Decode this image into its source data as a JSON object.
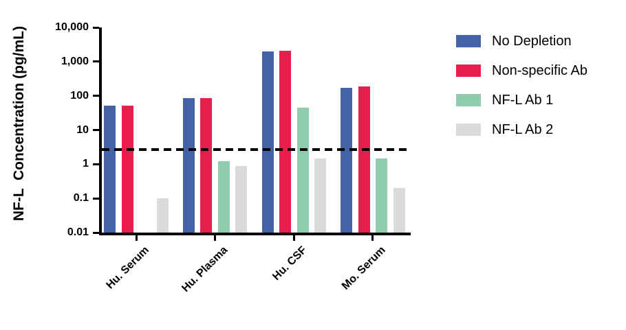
{
  "figure": {
    "background": "#FFFFFF",
    "axis_color": "#000000"
  },
  "chart_data": {
    "type": "bar",
    "title": "",
    "xlabel": "",
    "ylabel": "NF-L  Concentration (pg/mL)",
    "y_scale": "log",
    "ylim": [
      0.01,
      10000
    ],
    "y_ticks": [
      {
        "value": 10000,
        "label": "10,000"
      },
      {
        "value": 1000,
        "label": "1,000"
      },
      {
        "value": 100,
        "label": "100"
      },
      {
        "value": 10,
        "label": "10"
      },
      {
        "value": 1,
        "label": "1"
      },
      {
        "value": 0.1,
        "label": "0.1"
      },
      {
        "value": 0.01,
        "label": "0.01"
      }
    ],
    "categories": [
      "Hu. Serum",
      "Hu. Plasma",
      "Hu. CSF",
      "Mo. Serum"
    ],
    "series": [
      {
        "name": "No Depletion",
        "color": "#4363A8",
        "values": [
          52,
          85,
          2000,
          175
        ]
      },
      {
        "name": "Non-specific Ab",
        "color": "#E61E4C",
        "values": [
          52,
          85,
          2100,
          185
        ]
      },
      {
        "name": "NF-L Ab 1",
        "color": "#8FCBAD",
        "values": [
          null,
          1.2,
          45,
          1.5
        ]
      },
      {
        "name": "NF-L Ab 2",
        "color": "#D9DBDC",
        "values": [
          0.1,
          0.9,
          1.5,
          0.2
        ]
      }
    ],
    "threshold_line": {
      "value": 2.7,
      "style": "dashed",
      "color": "#000000"
    },
    "legend_position": "right",
    "grid": false
  }
}
